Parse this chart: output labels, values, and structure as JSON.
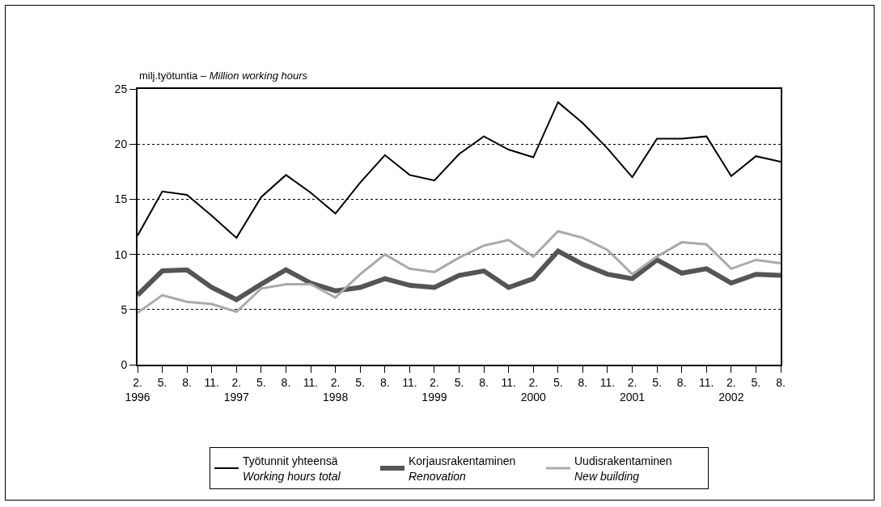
{
  "chart_data": {
    "type": "line",
    "ylabel": "milj.työtuntia – Million working hours",
    "categories": [
      "2.\n1996",
      "5.",
      "8.",
      "11.",
      "2.\n1997",
      "5.",
      "8.",
      "11.",
      "2.\n1998",
      "5.",
      "8.",
      "11.",
      "2.\n1999",
      "5.",
      "8.",
      "11.",
      "2.\n2000",
      "5.",
      "8.",
      "11.",
      "2.\n2001",
      "5.",
      "8.",
      "11.",
      "2.\n2002",
      "5.",
      "8."
    ],
    "series": [
      {
        "name": "Työtunnit yhteensä\nWorking hours total",
        "color": "#000000",
        "values": [
          11.7,
          15.7,
          15.4,
          13.5,
          11.5,
          15.2,
          17.2,
          15.6,
          13.7,
          16.5,
          19.0,
          17.2,
          16.7,
          19.1,
          20.7,
          19.5,
          18.8,
          23.8,
          21.9,
          19.6,
          17.0,
          20.5,
          20.5,
          20.7,
          17.1,
          18.9,
          18.4
        ]
      },
      {
        "name": "Korjausrakentaminen\nRenovation",
        "color": "#555555",
        "values": [
          6.3,
          8.5,
          8.6,
          7.0,
          5.9,
          7.3,
          8.6,
          7.4,
          6.7,
          7.0,
          7.8,
          7.2,
          7.0,
          8.1,
          8.5,
          7.0,
          7.8,
          10.3,
          9.1,
          8.2,
          7.8,
          9.5,
          8.3,
          8.7,
          7.4,
          8.2,
          8.1
        ]
      },
      {
        "name": "Uudisrakentaminen\nNew building",
        "color": "#aaaaaa",
        "values": [
          4.7,
          6.3,
          5.7,
          5.5,
          4.8,
          6.9,
          7.3,
          7.3,
          6.1,
          8.2,
          10.0,
          8.7,
          8.4,
          9.7,
          10.8,
          11.3,
          9.8,
          12.1,
          11.5,
          10.4,
          8.2,
          9.8,
          11.1,
          10.9,
          8.7,
          9.5,
          9.2
        ]
      }
    ],
    "ylim": [
      0,
      25
    ],
    "yticks": [
      0,
      5,
      10,
      15,
      20,
      25
    ],
    "grid": "y",
    "legend": "bottom",
    "marker": "none",
    "line_style": "solid"
  }
}
